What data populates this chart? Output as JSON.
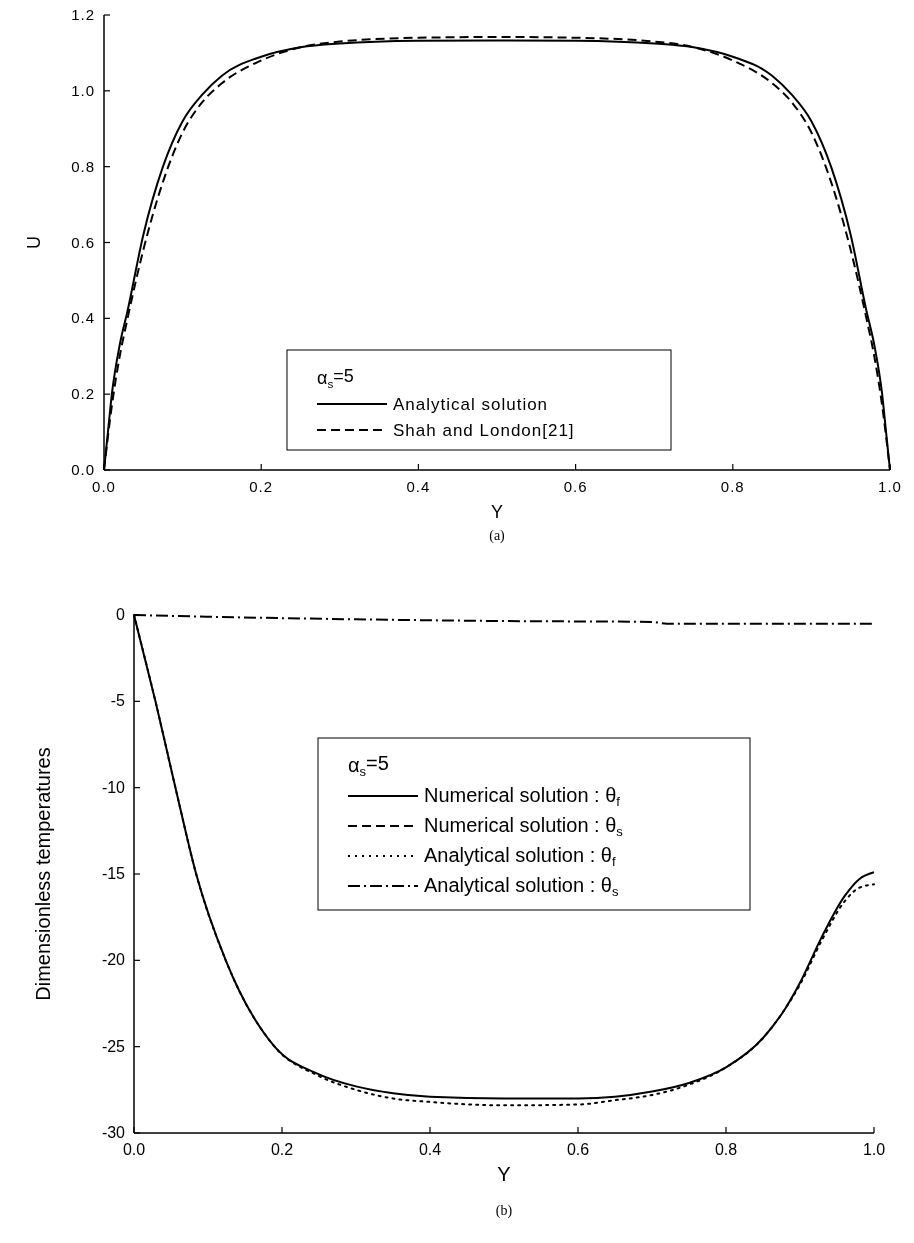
{
  "chart_data": [
    {
      "type": "line",
      "xlabel": "Y",
      "ylabel": "U",
      "legend_title": "α$_{s}$=5",
      "legend": "bottom",
      "annotations": [
        "(a)"
      ],
      "xlim": [
        0,
        1
      ],
      "ylim": [
        0,
        1.2
      ],
      "xticks": [
        {
          "value": 0,
          "label": "0.0"
        },
        {
          "value": 0.2,
          "label": "0.2"
        },
        {
          "value": 0.4,
          "label": "0.4"
        },
        {
          "value": 0.6,
          "label": "0.6"
        },
        {
          "value": 0.8,
          "label": "0.8"
        },
        {
          "value": 1,
          "label": "1.0"
        }
      ],
      "yticks": [
        {
          "value": 0,
          "label": "0.0"
        },
        {
          "value": 0.2,
          "label": "0.2"
        },
        {
          "value": 0.4,
          "label": "0.4"
        },
        {
          "value": 0.6,
          "label": "0.6"
        },
        {
          "value": 0.8,
          "label": "0.8"
        },
        {
          "value": 1,
          "label": "1.0"
        },
        {
          "value": 1.2,
          "label": "1.2"
        }
      ],
      "series": [
        {
          "name": "Analytical solution",
          "color": "#000000",
          "line_style": "solid",
          "x": [
            0,
            0.005,
            0.01,
            0.02,
            0.03,
            0.05,
            0.075,
            0.1,
            0.125,
            0.15,
            0.2,
            0.25,
            0.3,
            0.4,
            0.5,
            0.6,
            0.7,
            0.75,
            0.8,
            0.85,
            0.875,
            0.9,
            0.925,
            0.95,
            0.97,
            0.98,
            0.99,
            0.995,
            1
          ],
          "values": [
            0,
            0.1,
            0.2,
            0.33,
            0.42,
            0.62,
            0.8,
            0.92,
            0.99,
            1.04,
            1.09,
            1.115,
            1.125,
            1.132,
            1.133,
            1.132,
            1.125,
            1.115,
            1.09,
            1.04,
            0.99,
            0.92,
            0.8,
            0.62,
            0.42,
            0.33,
            0.2,
            0.1,
            0
          ]
        },
        {
          "name": "Shah and London[21]",
          "color": "#000000",
          "line_style": "dashed",
          "x": [
            0,
            0.01,
            0.02,
            0.03,
            0.05,
            0.075,
            0.1,
            0.125,
            0.15,
            0.2,
            0.25,
            0.3,
            0.4,
            0.5,
            0.6,
            0.7,
            0.75,
            0.8,
            0.85,
            0.875,
            0.9,
            0.925,
            0.95,
            0.97,
            0.98,
            0.99,
            1
          ],
          "values": [
            0,
            0.17,
            0.3,
            0.4,
            0.58,
            0.76,
            0.89,
            0.97,
            1.02,
            1.08,
            1.115,
            1.13,
            1.14,
            1.142,
            1.14,
            1.13,
            1.115,
            1.08,
            1.02,
            0.97,
            0.89,
            0.76,
            0.58,
            0.4,
            0.3,
            0.17,
            0
          ]
        }
      ]
    },
    {
      "type": "line",
      "xlabel": "Y",
      "ylabel": "Dimensionless temperatures",
      "legend_title": "α$_{s}$=5",
      "legend": "center",
      "annotations": [
        "(b)"
      ],
      "xlim": [
        0,
        1
      ],
      "ylim": [
        -30,
        0
      ],
      "xticks": [
        {
          "value": 0,
          "label": "0.0"
        },
        {
          "value": 0.2,
          "label": "0.2"
        },
        {
          "value": 0.4,
          "label": "0.4"
        },
        {
          "value": 0.6,
          "label": "0.6"
        },
        {
          "value": 0.8,
          "label": "0.8"
        },
        {
          "value": 1,
          "label": "1.0"
        }
      ],
      "yticks": [
        -30,
        -25,
        -20,
        -15,
        -10,
        -5,
        0
      ],
      "series": [
        {
          "name": "Numerical solution : θ$_{f}$",
          "color": "#000000",
          "line_style": "solid",
          "x": [
            0,
            0.029,
            0.056,
            0.084,
            0.124,
            0.19,
            0.25,
            0.3,
            0.35,
            0.4,
            0.5,
            0.6,
            0.65,
            0.7,
            0.75,
            0.8,
            0.85,
            0.88,
            0.9,
            0.93,
            0.96,
            0.98,
            1
          ],
          "values": [
            0,
            -5,
            -10,
            -15,
            -20,
            -25,
            -26.6,
            -27.3,
            -27.7,
            -27.9,
            -28,
            -28,
            -27.9,
            -27.6,
            -27.1,
            -26.2,
            -24.5,
            -22.8,
            -21.3,
            -18.6,
            -16.3,
            -15.3,
            -14.9
          ]
        },
        {
          "name": "Numerical solution : θ$_{s}$",
          "color": "#000000",
          "line_style": "dashed"
        },
        {
          "name": "Analytical solution : θ$_{f}$",
          "color": "#000000",
          "line_style": "dotted",
          "x": [
            0,
            0.029,
            0.056,
            0.084,
            0.124,
            0.19,
            0.25,
            0.3,
            0.35,
            0.4,
            0.5,
            0.6,
            0.65,
            0.7,
            0.75,
            0.8,
            0.85,
            0.88,
            0.9,
            0.93,
            0.96,
            0.98,
            1
          ],
          "values": [
            0,
            -5,
            -10,
            -15,
            -20,
            -25,
            -26.7,
            -27.5,
            -28,
            -28.2,
            -28.4,
            -28.35,
            -28.1,
            -27.8,
            -27.2,
            -26.2,
            -24.5,
            -22.8,
            -21.4,
            -18.8,
            -16.6,
            -15.8,
            -15.6
          ]
        },
        {
          "name": "Analytical solution : θ$_{s}$",
          "color": "#000000",
          "line_style": "dashdot",
          "x": [
            0,
            0.1,
            0.3,
            0.5,
            0.7,
            0.72,
            1
          ],
          "values": [
            0,
            -0.1,
            -0.25,
            -0.35,
            -0.4,
            -0.5,
            -0.5
          ]
        }
      ]
    }
  ]
}
